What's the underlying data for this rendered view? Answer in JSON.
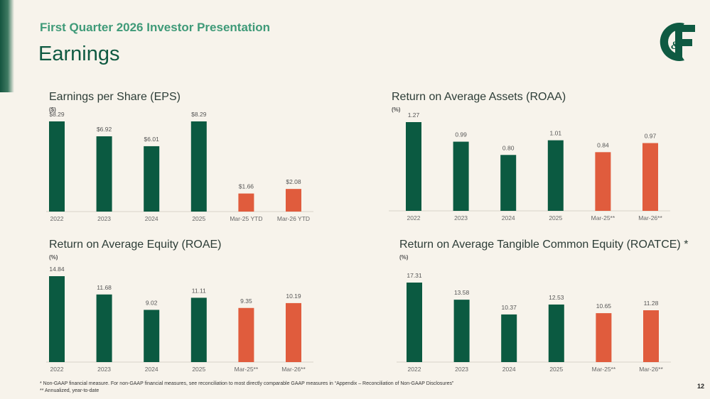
{
  "header": {
    "subtitle": "First Quarter 2026 Investor Presentation",
    "title": "Earnings"
  },
  "logo": {
    "text": "C&F",
    "color": "#0f5a42"
  },
  "colors": {
    "annual": "#0b5a41",
    "quarter": "#e05c3d"
  },
  "chart_data": [
    {
      "type": "bar",
      "title": "Earnings per Share (EPS)",
      "unit": "($)",
      "categories": [
        "2022",
        "2023",
        "2024",
        "2025",
        "Mar-25 YTD",
        "Mar-26 YTD"
      ],
      "values": [
        8.29,
        6.92,
        6.01,
        8.29,
        1.66,
        2.08
      ],
      "labels": [
        "$8.29",
        "$6.92",
        "$6.01",
        "$8.29",
        "$1.66",
        "$2.08"
      ],
      "bar_colors": [
        "#0b5a41",
        "#0b5a41",
        "#0b5a41",
        "#0b5a41",
        "#e05c3d",
        "#e05c3d"
      ],
      "ylim": [
        0,
        8.29
      ]
    },
    {
      "type": "bar",
      "title": "Return on Average Assets (ROAA)",
      "unit": "(%)",
      "categories": [
        "2022",
        "2023",
        "2024",
        "2025",
        "Mar-25**",
        "Mar-26**"
      ],
      "values": [
        1.27,
        0.99,
        0.8,
        1.01,
        0.84,
        0.97
      ],
      "labels": [
        "1.27",
        "0.99",
        "0.80",
        "1.01",
        "0.84",
        "0.97"
      ],
      "bar_colors": [
        "#0b5a41",
        "#0b5a41",
        "#0b5a41",
        "#0b5a41",
        "#e05c3d",
        "#e05c3d"
      ],
      "ylim": [
        0,
        1.27
      ]
    },
    {
      "type": "bar",
      "title": "Return on Average Equity (ROAE)",
      "unit": "(%)",
      "categories": [
        "2022",
        "2023",
        "2024",
        "2025",
        "Mar-25**",
        "Mar-26**"
      ],
      "values": [
        14.84,
        11.68,
        9.02,
        11.11,
        9.35,
        10.19
      ],
      "labels": [
        "14.84",
        "11.68",
        "9.02",
        "11.11",
        "9.35",
        "10.19"
      ],
      "bar_colors": [
        "#0b5a41",
        "#0b5a41",
        "#0b5a41",
        "#0b5a41",
        "#e05c3d",
        "#e05c3d"
      ],
      "ylim": [
        0,
        14.84
      ]
    },
    {
      "type": "bar",
      "title": "Return on Average Tangible Common Equity (ROATCE) *",
      "unit": "(%)",
      "categories": [
        "2022",
        "2023",
        "2024",
        "2025",
        "Mar-25**",
        "Mar-26**"
      ],
      "values": [
        17.31,
        13.58,
        10.37,
        12.53,
        10.65,
        11.28
      ],
      "labels": [
        "17.31",
        "13.58",
        "10.37",
        "12.53",
        "10.65",
        "11.28"
      ],
      "bar_colors": [
        "#0b5a41",
        "#0b5a41",
        "#0b5a41",
        "#0b5a41",
        "#e05c3d",
        "#e05c3d"
      ],
      "ylim": [
        0,
        17.31
      ]
    }
  ],
  "footnotes": [
    "*  Non-GAAP financial measure.  For non-GAAP financial measures, see reconciliation to most directly comparable GAAP measures in “Appendix – Reconciliation of Non-GAAP Disclosures”",
    "** Annualized, year-to-date"
  ],
  "page_number": "12"
}
